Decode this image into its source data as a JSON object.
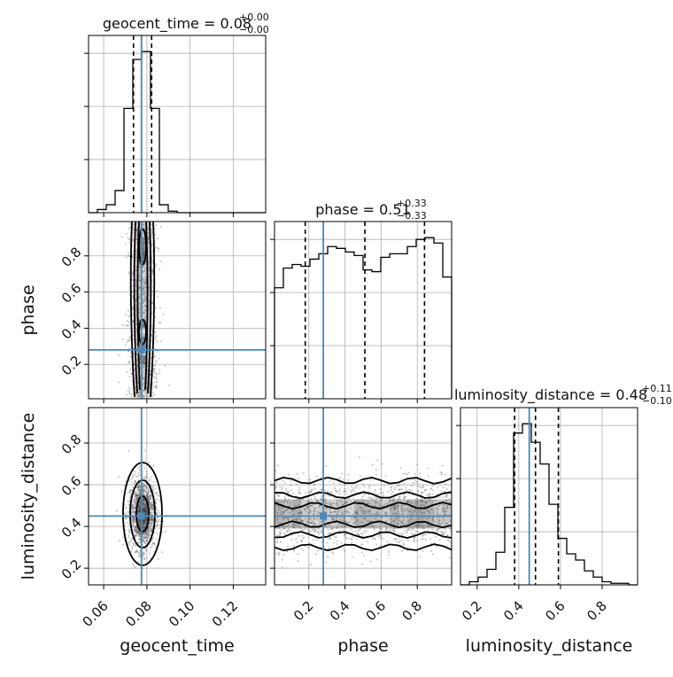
{
  "colors": {
    "truth": "#4c88b8",
    "hist": "#000000",
    "grid": "#b0b0b0",
    "points": "#555555"
  },
  "chart_data": {
    "type": "corner",
    "parameters": [
      {
        "key": "geocent_time",
        "label": "geocent_time",
        "title_main": "geocent_time = 0.08",
        "title_sup": "+0.00",
        "title_sub": "−0.00",
        "range": [
          0.053,
          0.135
        ],
        "ticks": [
          0.06,
          0.08,
          0.1,
          0.12
        ],
        "tick_labels": [
          "0.06",
          "0.08",
          "0.10",
          "0.12"
        ],
        "truth": 0.0775,
        "quantiles": [
          0.0738,
          0.0775,
          0.0822
        ],
        "hist_edges": [
          0.053,
          0.0571,
          0.0612,
          0.0653,
          0.0694,
          0.0735,
          0.0776,
          0.0817,
          0.0858,
          0.0899,
          0.094,
          0.0981,
          0.1022,
          0.1063,
          0.1104,
          0.1145,
          0.1186,
          0.1227,
          0.1268,
          0.1309,
          0.135
        ],
        "hist_counts": [
          0,
          2,
          5,
          14,
          66,
          97,
          102,
          66,
          5,
          1,
          0,
          0,
          0,
          0,
          0,
          0,
          0,
          0,
          0,
          0
        ]
      },
      {
        "key": "phase",
        "label": "phase",
        "title_main": "phase = 0.51",
        "title_sup": "+0.33",
        "title_sub": "−0.33",
        "range": [
          0.01,
          0.99
        ],
        "ticks": [
          0.2,
          0.4,
          0.6,
          0.8
        ],
        "tick_labels": [
          "0.2",
          "0.4",
          "0.6",
          "0.8"
        ],
        "truth": 0.28,
        "quantiles": [
          0.18,
          0.51,
          0.84
        ],
        "hist_edges": [
          0.01,
          0.059,
          0.108,
          0.157,
          0.206,
          0.255,
          0.304,
          0.353,
          0.402,
          0.451,
          0.5,
          0.549,
          0.598,
          0.647,
          0.696,
          0.745,
          0.794,
          0.843,
          0.892,
          0.941,
          0.99
        ],
        "hist_counts": [
          62,
          73,
          75,
          74,
          78,
          81,
          85,
          84,
          82,
          80,
          72,
          71,
          79,
          81,
          81,
          85,
          89,
          90,
          87,
          68
        ]
      },
      {
        "key": "luminosity_distance",
        "label": "luminosity_distance",
        "title_main": "luminosity_distance = 0.48",
        "title_sup": "+0.11",
        "title_sub": "−0.10",
        "range": [
          0.12,
          0.97
        ],
        "ticks": [
          0.2,
          0.4,
          0.6,
          0.8
        ],
        "tick_labels": [
          "0.2",
          "0.4",
          "0.6",
          "0.8"
        ],
        "truth": 0.45,
        "quantiles": [
          0.38,
          0.48,
          0.59
        ],
        "hist_edges": [
          0.12,
          0.1625,
          0.205,
          0.2475,
          0.29,
          0.3325,
          0.375,
          0.4175,
          0.46,
          0.5025,
          0.545,
          0.5875,
          0.63,
          0.6725,
          0.715,
          0.7575,
          0.8,
          0.8425,
          0.885,
          0.9275,
          0.97
        ],
        "hist_counts": [
          0,
          2,
          5,
          10,
          21,
          50,
          98,
          104,
          92,
          78,
          52,
          30,
          20,
          16,
          9,
          5,
          2,
          1,
          1,
          0
        ]
      }
    ],
    "pairs": [
      {
        "x": "geocent_time",
        "y": "phase",
        "contour_shape": "narrow vertical band centred at geocent_time 0.078 spanning phase 0.02–0.98, densest near phase 0.85 and 0.35"
      },
      {
        "x": "geocent_time",
        "y": "luminosity_distance",
        "contour_shape": "compact ellipse centred at geocent_time 0.078, luminosity_distance 0.46"
      },
      {
        "x": "phase",
        "y": "luminosity_distance",
        "contour_shape": "horizontal band centred at luminosity_distance 0.46 spanning all phase"
      }
    ]
  }
}
